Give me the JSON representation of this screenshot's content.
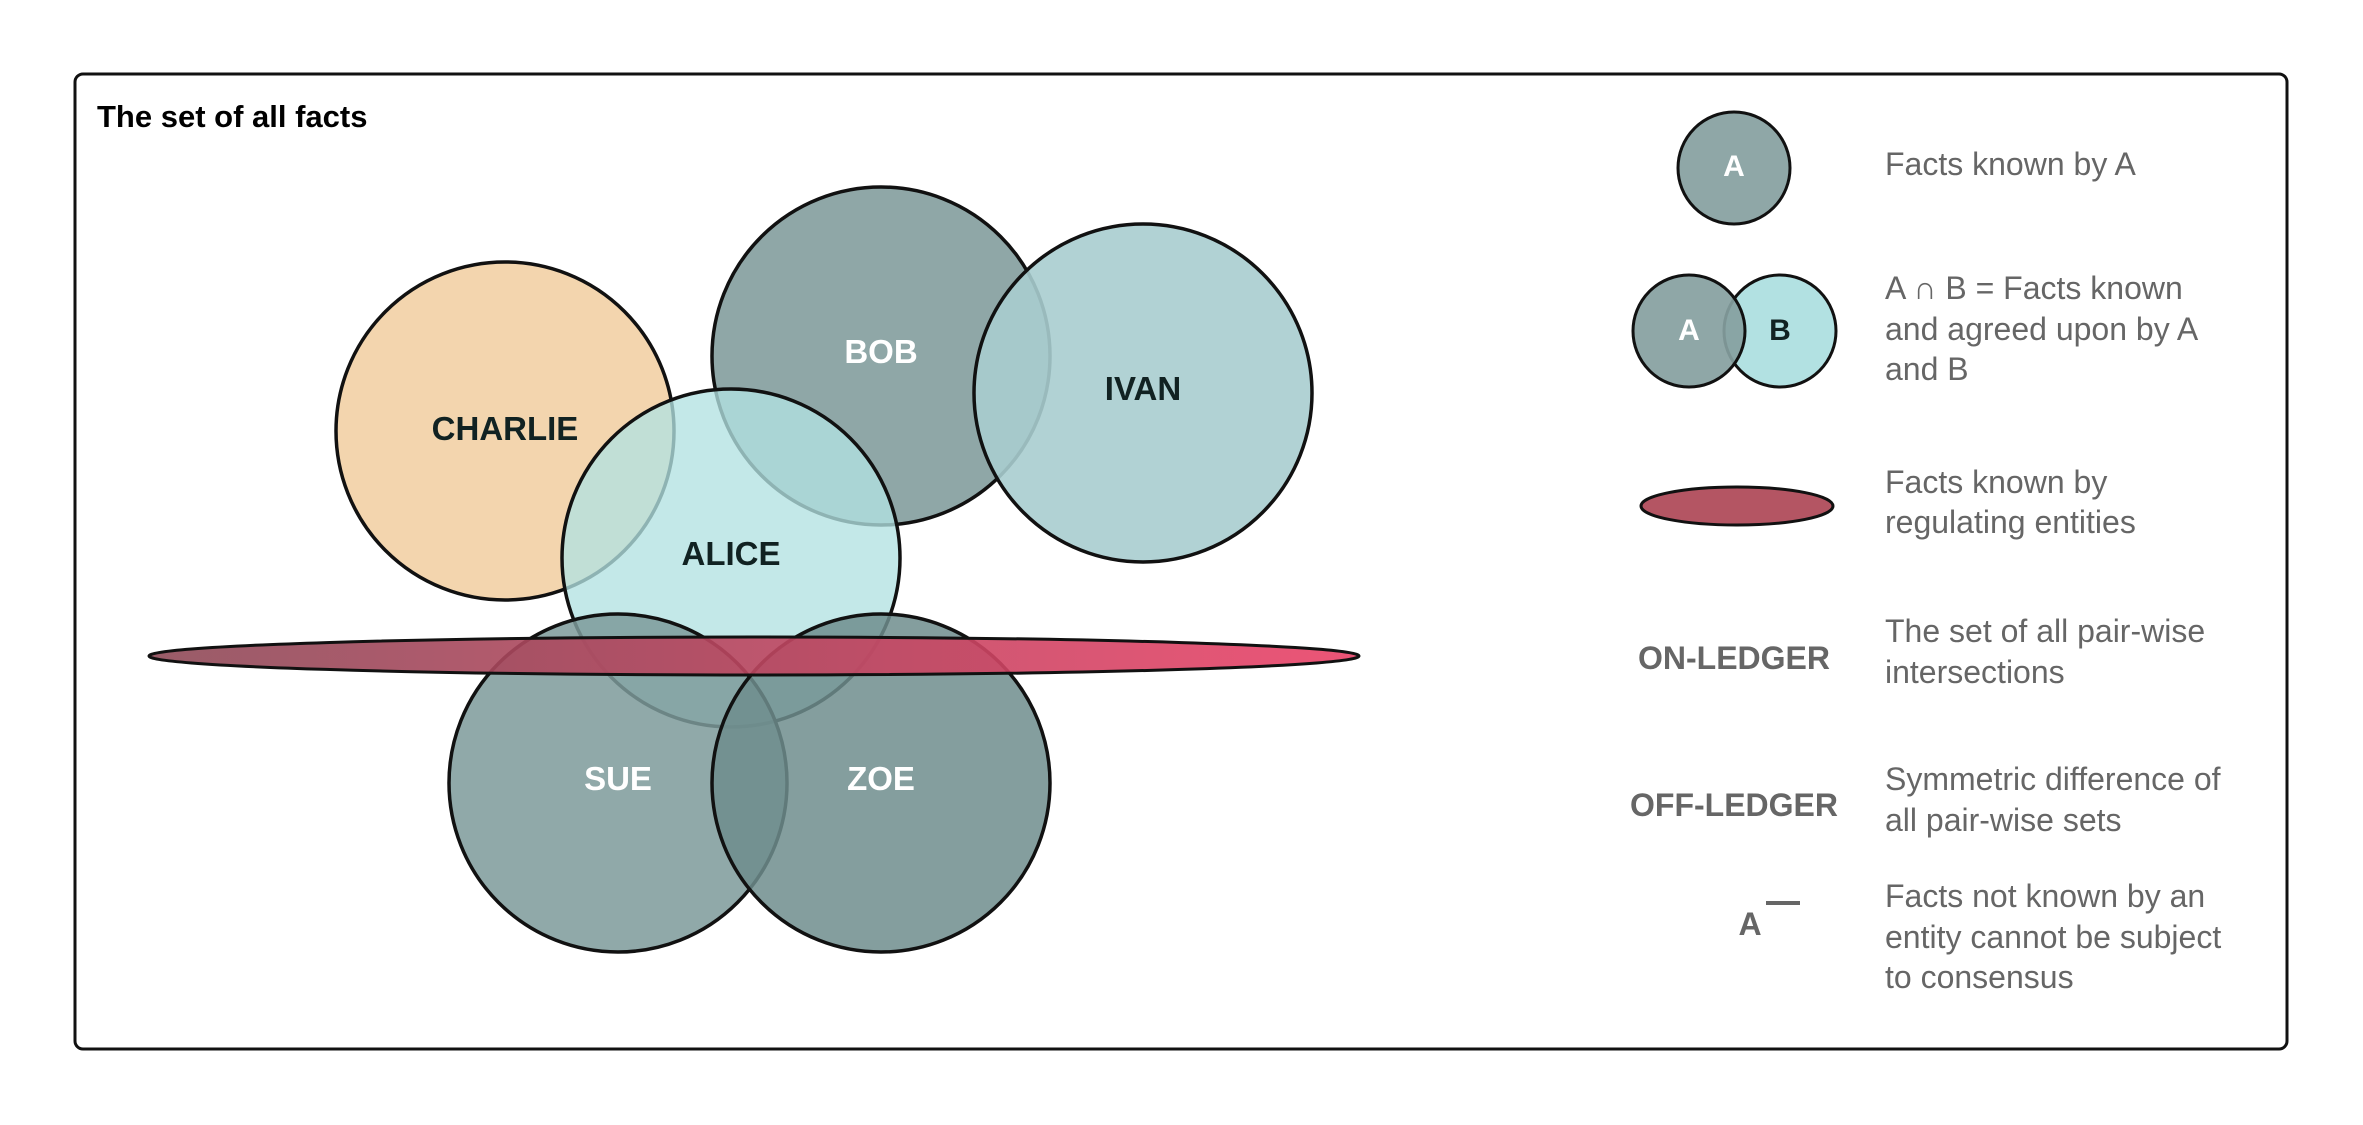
{
  "title": "The set of all facts",
  "entities": {
    "charlie": "CHARLIE",
    "bob": "BOB",
    "ivan": "IVAN",
    "alice": "ALICE",
    "sue": "SUE",
    "zoe": "ZOE"
  },
  "legend": {
    "single": {
      "symbol": "A",
      "description": "Facts known by A"
    },
    "intersection": {
      "symbol_a": "A",
      "symbol_b": "B",
      "description_lines": [
        "A ∩ B = Facts known",
        "and agreed upon by A",
        "and B"
      ]
    },
    "regulator": {
      "description_lines": [
        "Facts known by",
        "regulating entities"
      ]
    },
    "on_ledger": {
      "term": "ON-LEDGER",
      "description_lines": [
        "The set of all pair-wise",
        "intersections"
      ]
    },
    "off_ledger": {
      "term": "OFF-LEDGER",
      "description_lines": [
        "Symmetric difference of",
        "all pair-wise sets"
      ]
    },
    "complement": {
      "symbol": "A",
      "description_lines": [
        "Facts not known by an",
        "entity cannot be subject",
        "to consensus"
      ]
    }
  },
  "colors": {
    "charlie": "#f3d5ae",
    "bob": "#869f9f",
    "ivan": "#a9cdcf",
    "alice": "#b2e1e2",
    "sue": "#8aa6a6",
    "zoe": "#7d9a9a",
    "regulator_start": "#a35363",
    "regulator_end": "#e8476a",
    "outline": "#111111",
    "legend_text": "#666666"
  }
}
